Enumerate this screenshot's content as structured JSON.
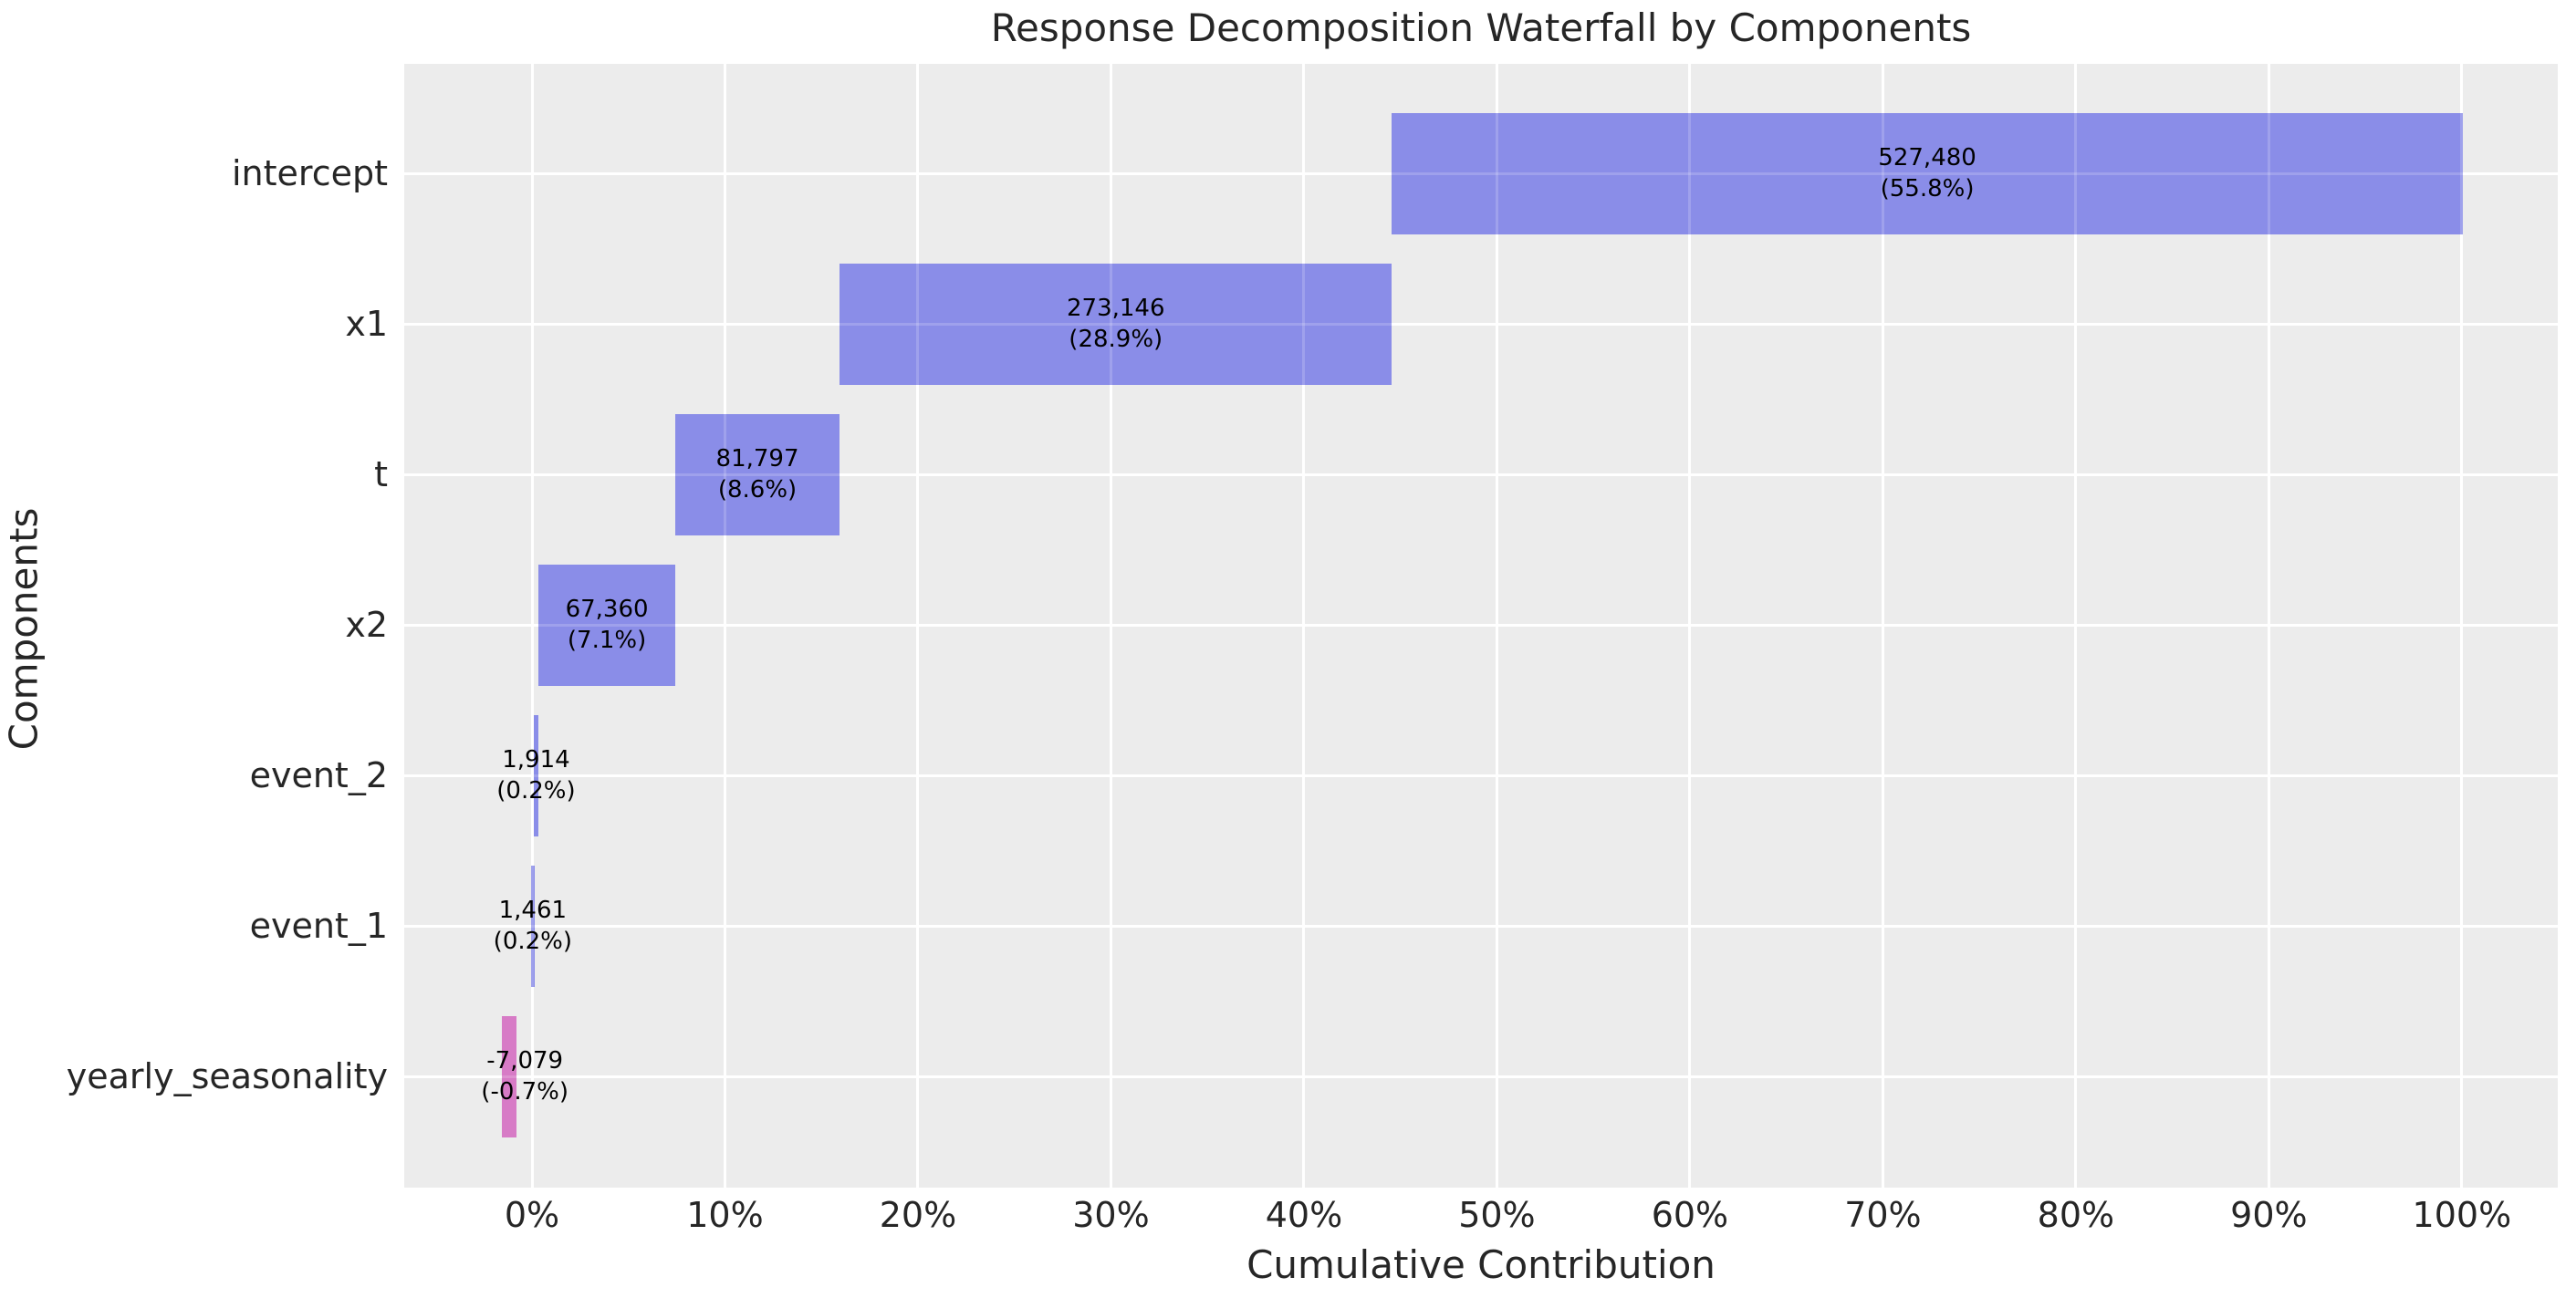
{
  "chart_data": {
    "type": "bar",
    "orientation": "horizontal",
    "waterfall": true,
    "title": "Response Decomposition Waterfall by Components",
    "xlabel": "Cumulative Contribution",
    "ylabel": "Components",
    "grid": true,
    "plot_bg": "#ececec",
    "grid_color": "#ffffff",
    "positive_color": "#8a8de8",
    "negative_color": "#d77bc6",
    "text_color": "#262626",
    "xlim": [
      -6.62,
      104.97
    ],
    "x_ticks": [
      {
        "value": 0,
        "label": "0%"
      },
      {
        "value": 10,
        "label": "10%"
      },
      {
        "value": 20,
        "label": "20%"
      },
      {
        "value": 30,
        "label": "30%"
      },
      {
        "value": 40,
        "label": "40%"
      },
      {
        "value": 50,
        "label": "50%"
      },
      {
        "value": 60,
        "label": "60%"
      },
      {
        "value": 70,
        "label": "70%"
      },
      {
        "value": 80,
        "label": "80%"
      },
      {
        "value": 90,
        "label": "90%"
      },
      {
        "value": 100,
        "label": "100%"
      }
    ],
    "categories": [
      "intercept",
      "x1",
      "t",
      "x2",
      "event_2",
      "event_1",
      "yearly_seasonality"
    ],
    "values": [
      527480,
      273146,
      81797,
      67360,
      1914,
      1461,
      -7079
    ],
    "percents": [
      55.8,
      28.9,
      8.6,
      7.1,
      0.2,
      0.2,
      -0.7
    ],
    "rows": [
      {
        "name": "intercept",
        "value_label": "527,480",
        "pct_label": "(55.8%)",
        "start": 44.55,
        "end": 100.05,
        "sign": "positive",
        "label_x": 72.3
      },
      {
        "name": "x1",
        "value_label": "273,146",
        "pct_label": "(28.9%)",
        "start": 15.95,
        "end": 44.55,
        "sign": "positive",
        "label_x": 30.25
      },
      {
        "name": "t",
        "value_label": "81,797",
        "pct_label": "(8.6%)",
        "start": 7.4,
        "end": 15.95,
        "sign": "positive",
        "label_x": 11.68
      },
      {
        "name": "x2",
        "value_label": "67,360",
        "pct_label": "(7.1%)",
        "start": 0.35,
        "end": 7.4,
        "sign": "positive",
        "label_x": 3.88
      },
      {
        "name": "event_2",
        "value_label": "1,914",
        "pct_label": "(0.2%)",
        "start": 0.1,
        "end": 0.32,
        "sign": "positive",
        "label_x": 0.21
      },
      {
        "name": "event_1",
        "value_label": "1,461",
        "pct_label": "(0.2%)",
        "start": -0.04,
        "end": 0.12,
        "sign": "positive",
        "label_x": 0.04
      },
      {
        "name": "yearly_seasonality",
        "value_label": "-7,079",
        "pct_label": "(-0.7%)",
        "start": -1.55,
        "end": -0.8,
        "sign": "negative",
        "label_x": -0.37
      }
    ]
  }
}
